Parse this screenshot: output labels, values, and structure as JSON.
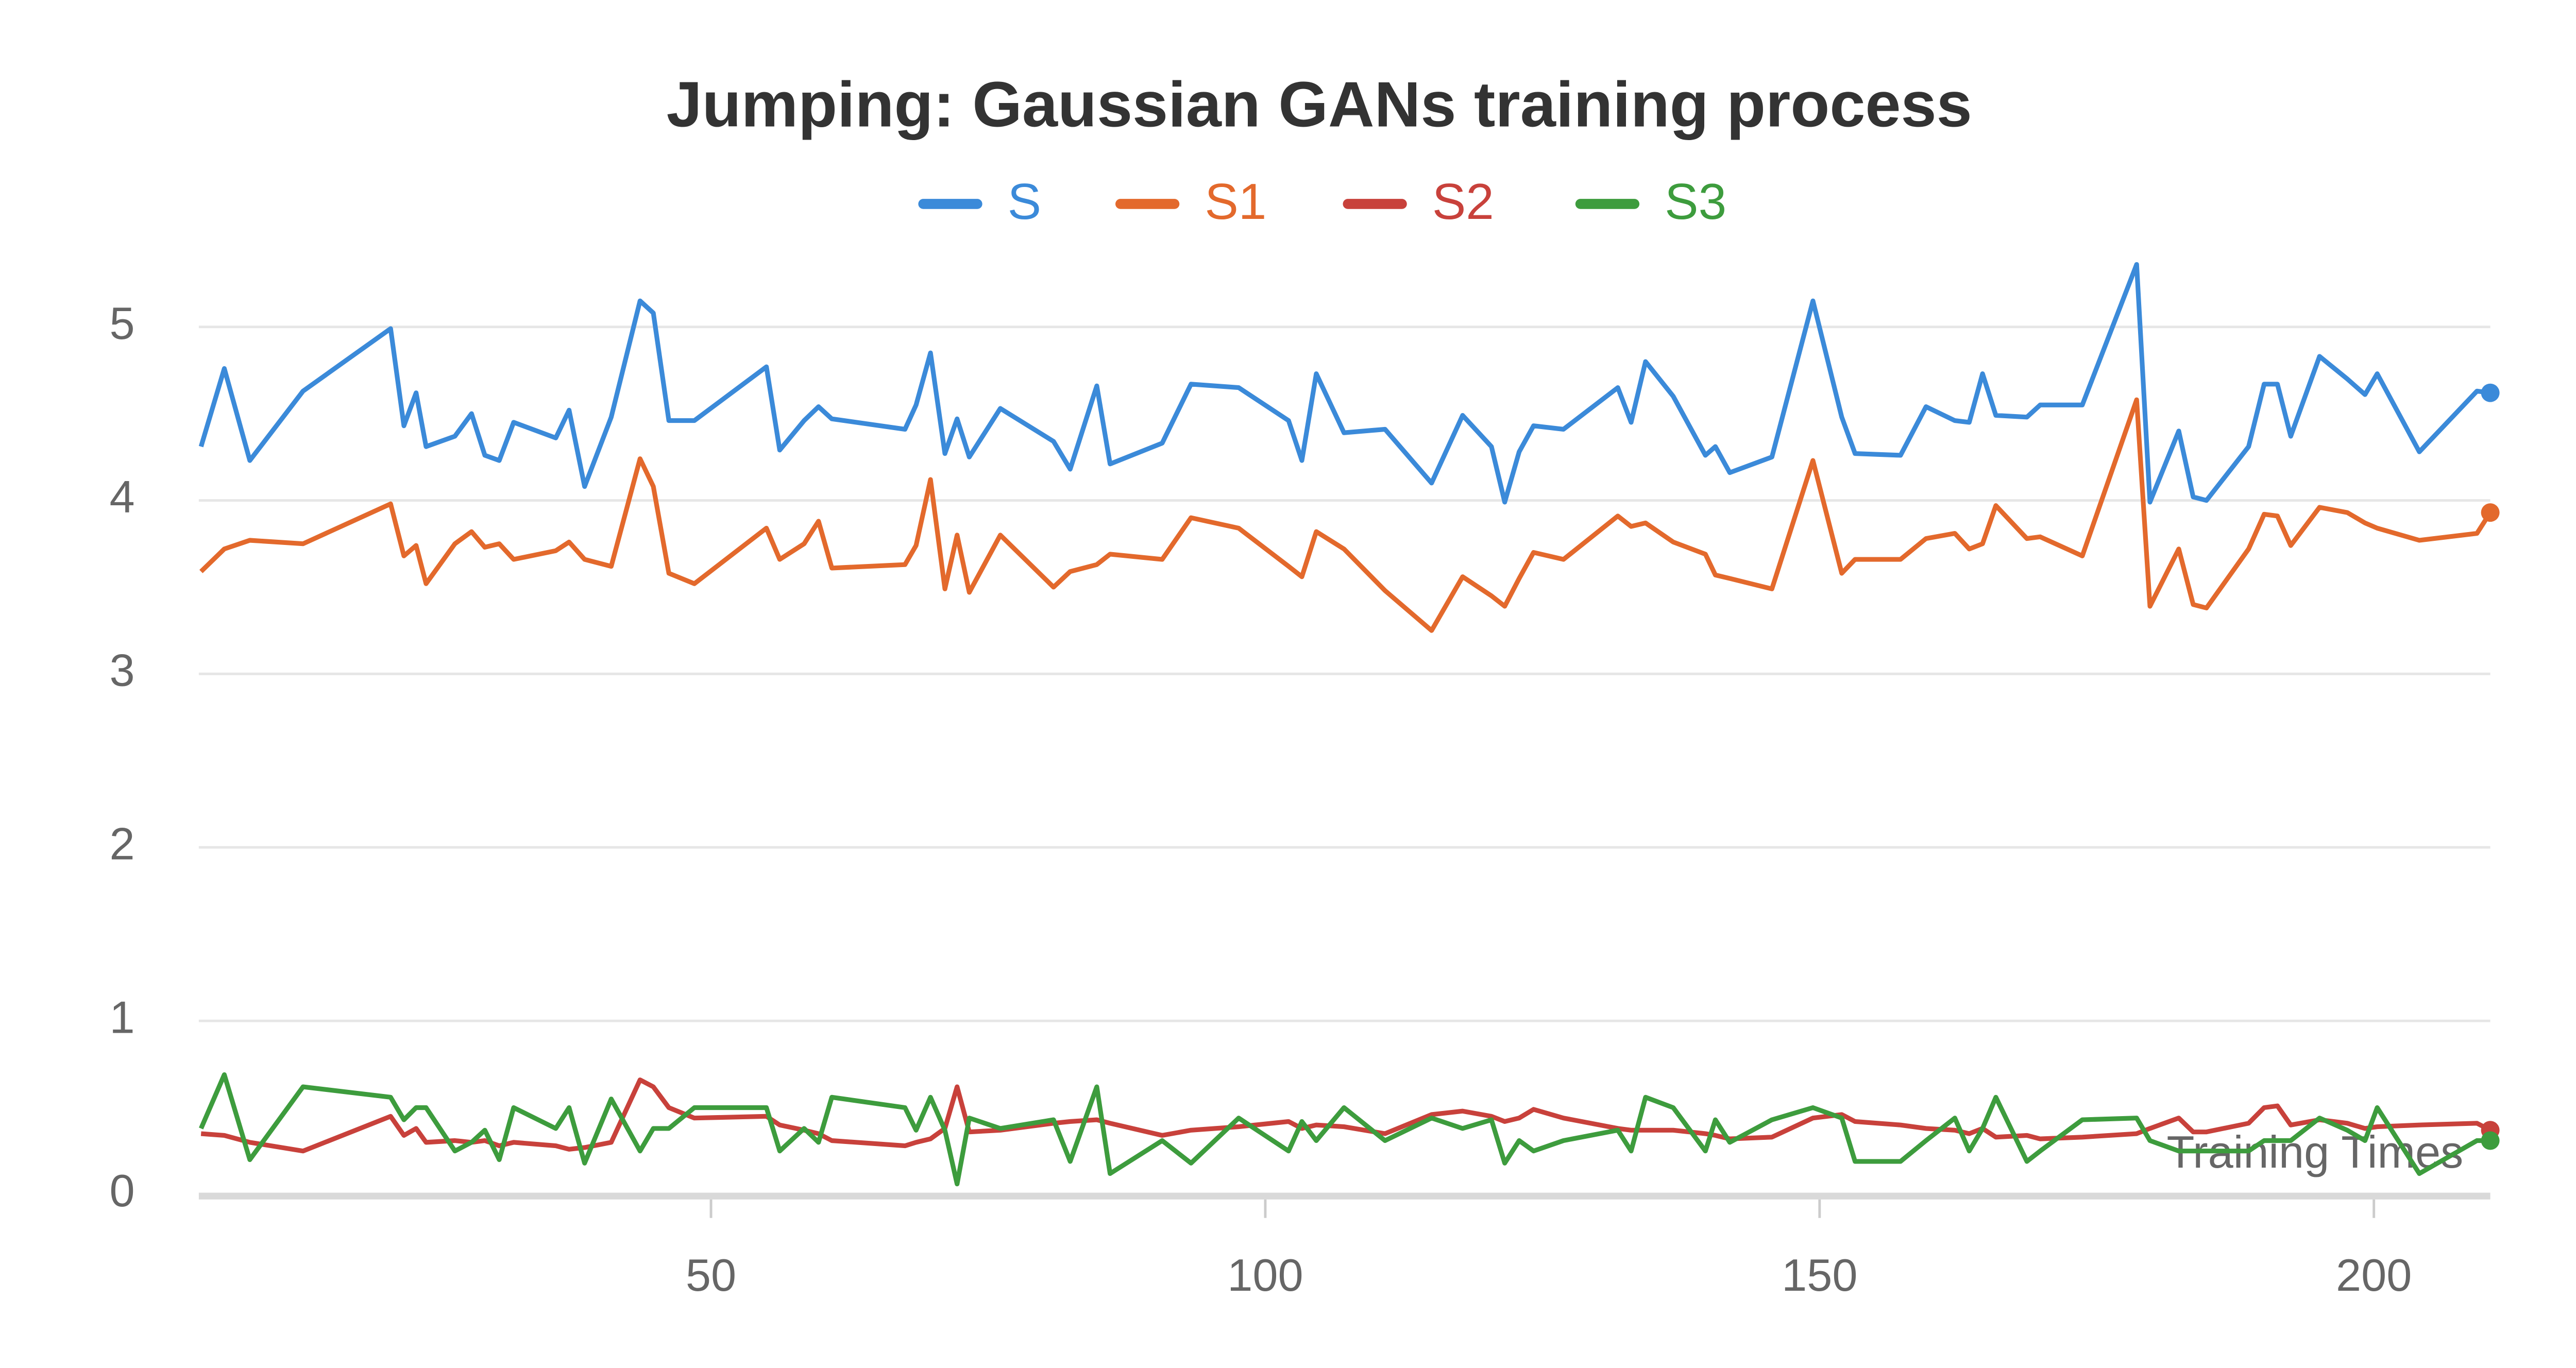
{
  "chart_data": {
    "type": "line",
    "title": "Jumping: Gaussian GANs training process",
    "x_label": "Training Times",
    "x": [
      4,
      6.1,
      8.4,
      13.2,
      21.1,
      22.3,
      23.4,
      24.3,
      26.9,
      28.4,
      29.6,
      30.9,
      32.2,
      36,
      37.2,
      38.6,
      41,
      43.6,
      44.8,
      46.2,
      48.5,
      55,
      56.2,
      58.4,
      59.7,
      60.9,
      67.5,
      68.5,
      69.8,
      71.1,
      72.2,
      73.3,
      76.1,
      80.9,
      82.4,
      84.8,
      86,
      90.7,
      93.3,
      97.6,
      102.1,
      103.3,
      104.6,
      107.1,
      110.8,
      115,
      117.8,
      120.4,
      121.6,
      122.9,
      124.2,
      126.9,
      131.8,
      133,
      134.3,
      136.8,
      139.7,
      140.6,
      141.9,
      145.7,
      149.4,
      152,
      153.2,
      157.3,
      159.6,
      162.2,
      163.5,
      164.7,
      165.9,
      168.7,
      169.9,
      173.7,
      178.6,
      179.8,
      182.4,
      183.7,
      184.9,
      188.7,
      190.1,
      191.3,
      192.5,
      195.1,
      197.6,
      199.2,
      200.3,
      204.1,
      209.3,
      210.5
    ],
    "series": [
      {
        "name": "S",
        "color": "#3b8ad9",
        "values": [
          4.31,
          4.76,
          4.23,
          4.63,
          4.99,
          4.43,
          4.62,
          4.31,
          4.37,
          4.5,
          4.26,
          4.23,
          4.45,
          4.36,
          4.52,
          4.08,
          4.48,
          5.15,
          5.08,
          4.46,
          4.46,
          4.77,
          4.29,
          4.46,
          4.54,
          4.47,
          4.41,
          4.55,
          4.85,
          4.27,
          4.47,
          4.25,
          4.53,
          4.34,
          4.18,
          4.66,
          4.21,
          4.33,
          4.67,
          4.65,
          4.46,
          4.23,
          4.73,
          4.39,
          4.41,
          4.1,
          4.49,
          4.31,
          3.99,
          4.28,
          4.43,
          4.41,
          4.65,
          4.45,
          4.8,
          4.6,
          4.26,
          4.31,
          4.16,
          4.25,
          5.15,
          4.48,
          4.27,
          4.26,
          4.54,
          4.46,
          4.45,
          4.73,
          4.49,
          4.48,
          4.55,
          4.55,
          5.36,
          3.99,
          4.4,
          4.02,
          4.0,
          4.31,
          4.67,
          4.67,
          4.37,
          4.83,
          4.7,
          4.61,
          4.73,
          4.28,
          4.63,
          4.62
        ]
      },
      {
        "name": "S1",
        "color": "#e3692c",
        "values": [
          3.59,
          3.72,
          3.77,
          3.75,
          3.98,
          3.68,
          3.74,
          3.52,
          3.75,
          3.82,
          3.73,
          3.75,
          3.66,
          3.71,
          3.76,
          3.66,
          3.62,
          4.24,
          4.08,
          3.58,
          3.52,
          3.84,
          3.66,
          3.75,
          3.88,
          3.61,
          3.63,
          3.74,
          4.12,
          3.49,
          3.8,
          3.47,
          3.8,
          3.5,
          3.59,
          3.63,
          3.69,
          3.66,
          3.9,
          3.84,
          3.62,
          3.56,
          3.82,
          3.72,
          3.48,
          3.25,
          3.56,
          3.45,
          3.39,
          3.55,
          3.7,
          3.66,
          3.91,
          3.85,
          3.87,
          3.76,
          3.69,
          3.57,
          3.55,
          3.49,
          4.23,
          3.58,
          3.66,
          3.66,
          3.78,
          3.81,
          3.72,
          3.75,
          3.97,
          3.78,
          3.79,
          3.68,
          4.58,
          3.39,
          3.72,
          3.4,
          3.38,
          3.72,
          3.92,
          3.91,
          3.74,
          3.96,
          3.93,
          3.87,
          3.84,
          3.77,
          3.81,
          3.93
        ]
      },
      {
        "name": "S2",
        "color": "#c8413b",
        "values": [
          0.35,
          0.34,
          0.3,
          0.25,
          0.45,
          0.34,
          0.38,
          0.3,
          0.31,
          0.3,
          0.31,
          0.28,
          0.3,
          0.28,
          0.26,
          0.27,
          0.3,
          0.66,
          0.62,
          0.5,
          0.44,
          0.45,
          0.4,
          0.37,
          0.35,
          0.31,
          0.28,
          0.3,
          0.32,
          0.38,
          0.62,
          0.36,
          0.37,
          0.41,
          0.42,
          0.43,
          0.41,
          0.34,
          0.37,
          0.39,
          0.42,
          0.38,
          0.4,
          0.39,
          0.35,
          0.46,
          0.48,
          0.45,
          0.42,
          0.44,
          0.49,
          0.44,
          0.38,
          0.37,
          0.37,
          0.37,
          0.35,
          0.34,
          0.32,
          0.33,
          0.44,
          0.46,
          0.42,
          0.4,
          0.38,
          0.37,
          0.35,
          0.38,
          0.33,
          0.34,
          0.32,
          0.33,
          0.35,
          0.38,
          0.44,
          0.36,
          0.36,
          0.41,
          0.5,
          0.51,
          0.4,
          0.43,
          0.41,
          0.38,
          0.39,
          0.4,
          0.41,
          0.37
        ]
      },
      {
        "name": "S3",
        "color": "#3d9c3d",
        "values": [
          0.38,
          0.69,
          0.2,
          0.62,
          0.56,
          0.43,
          0.5,
          0.5,
          0.25,
          0.3,
          0.37,
          0.2,
          0.5,
          0.38,
          0.5,
          0.18,
          0.55,
          0.25,
          0.38,
          0.38,
          0.5,
          0.5,
          0.25,
          0.38,
          0.3,
          0.56,
          0.5,
          0.37,
          0.56,
          0.37,
          0.06,
          0.44,
          0.38,
          0.43,
          0.19,
          0.62,
          0.12,
          0.31,
          0.18,
          0.44,
          0.25,
          0.42,
          0.31,
          0.5,
          0.31,
          0.44,
          0.38,
          0.43,
          0.18,
          0.31,
          0.25,
          0.31,
          0.37,
          0.25,
          0.56,
          0.5,
          0.25,
          0.43,
          0.3,
          0.43,
          0.5,
          0.44,
          0.19,
          0.19,
          0.31,
          0.44,
          0.25,
          0.38,
          0.56,
          0.19,
          0.25,
          0.43,
          0.44,
          0.31,
          0.25,
          0.25,
          0.25,
          0.25,
          0.31,
          0.31,
          0.31,
          0.44,
          0.37,
          0.31,
          0.5,
          0.12,
          0.31,
          0.31
        ]
      }
    ],
    "xlim": [
      3.8,
      210.5
    ],
    "xticks": [
      50,
      100,
      150,
      200
    ],
    "ylim": [
      0,
      5.5
    ],
    "yticks": [
      0,
      1,
      2,
      3,
      4,
      5
    ],
    "grid": true,
    "legend": "top"
  }
}
